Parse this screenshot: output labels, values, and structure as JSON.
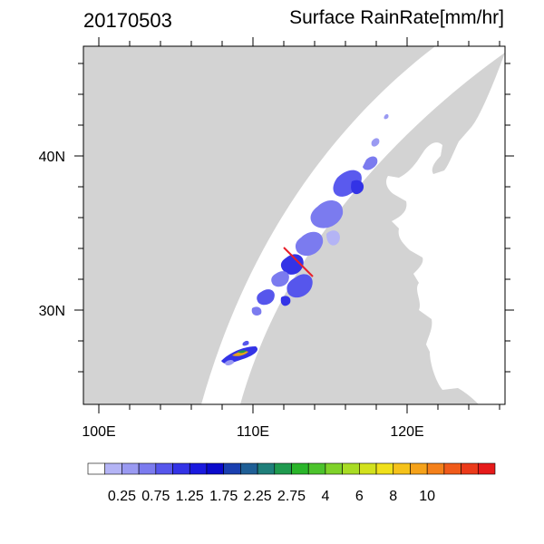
{
  "title": {
    "date": "20170503",
    "variable": "Surface RainRate[mm/hr]"
  },
  "axes": {
    "x_ticks": [
      "100E",
      "110E",
      "120E"
    ],
    "y_ticks": [
      "40N",
      "30N"
    ]
  },
  "colors": {
    "land": "#d3d3d3",
    "swath": "#ffffff",
    "frame": "#000000",
    "cross_section": "#e8202a"
  },
  "colorbar": {
    "colors": [
      "#ffffff",
      "#b4b4f5",
      "#9a9af2",
      "#7b7bef",
      "#5656ec",
      "#3333e6",
      "#1a1adf",
      "#0a0acc",
      "#1a3fb0",
      "#1f5f96",
      "#1f7f7a",
      "#1f9a4f",
      "#2ab52a",
      "#4cc32c",
      "#7fd22a",
      "#a8dc24",
      "#d2e11d",
      "#f0e01a",
      "#f5c21a",
      "#f5a21a",
      "#f4801a",
      "#f05a1a",
      "#eb3a1a",
      "#e61a1a"
    ],
    "labels": [
      "0.25",
      "0.75",
      "1.25",
      "1.75",
      "2.25",
      "2.75",
      "4",
      "6",
      "8",
      "10"
    ]
  }
}
